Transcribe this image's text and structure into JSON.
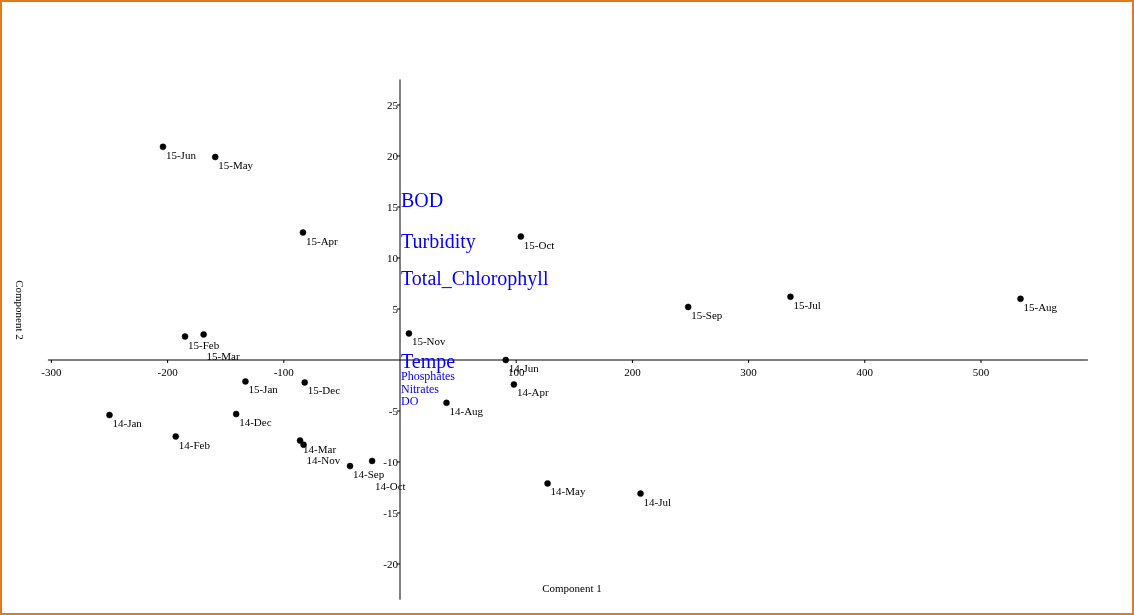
{
  "chart_data": {
    "type": "scatter",
    "xlabel": "Component 1",
    "ylabel": "Component 2",
    "xlim": [
      -303,
      592
    ],
    "ylim": [
      -23.5,
      27.5
    ],
    "xticks": [
      -300,
      -200,
      -100,
      100,
      200,
      300,
      400,
      500
    ],
    "yticks": [
      -20,
      -15,
      -10,
      -5,
      5,
      10,
      15,
      20,
      25
    ],
    "grid": false,
    "marker": "circle",
    "series": [
      {
        "color": "#000000",
        "x": [
          -204,
          -159,
          -83.5,
          -185,
          -169,
          7.7,
          104,
          248,
          336,
          534,
          91,
          98,
          40,
          -133,
          -82,
          -250,
          -141,
          -193,
          -86,
          -83,
          -43,
          -24,
          127,
          207
        ],
        "values": [
          20.9,
          19.9,
          12.5,
          2.3,
          2.5,
          2.6,
          12.1,
          5.2,
          6.2,
          6.0,
          0,
          -2.4,
          -4.2,
          -2.1,
          -2.2,
          -5.4,
          -5.3,
          -7.5,
          -7.9,
          -8.3,
          -10.4,
          -9.9,
          -12.1,
          -13.1
        ]
      }
    ],
    "annotations": [
      {
        "text": "15-Jun",
        "x": -204,
        "y": 20.9
      },
      {
        "text": "15-May",
        "x": -159,
        "y": 19.9
      },
      {
        "text": "15-Apr",
        "x": -83.5,
        "y": 12.5
      },
      {
        "text": "15-Feb",
        "x": -185,
        "y": 2.3
      },
      {
        "text": "15-Mar",
        "x": -169,
        "y": 2.5
      },
      {
        "text": "15-Nov",
        "x": 7.7,
        "y": 2.6
      },
      {
        "text": "15-Oct",
        "x": 104,
        "y": 12.1
      },
      {
        "text": "15-Sep",
        "x": 248,
        "y": 5.2
      },
      {
        "text": "15-Jul",
        "x": 336,
        "y": 6.2
      },
      {
        "text": "15-Aug",
        "x": 534,
        "y": 6.0
      },
      {
        "text": "14-Jun",
        "x": 91,
        "y": 0
      },
      {
        "text": "14-Apr",
        "x": 98,
        "y": -2.4
      },
      {
        "text": "14-Aug",
        "x": 40,
        "y": -4.2
      },
      {
        "text": "15-Jan",
        "x": -133,
        "y": -2.1
      },
      {
        "text": "15-Dec",
        "x": -82,
        "y": -2.2
      },
      {
        "text": "14-Jan",
        "x": -250,
        "y": -5.4
      },
      {
        "text": "14-Dec",
        "x": -141,
        "y": -5.3
      },
      {
        "text": "14-Feb",
        "x": -193,
        "y": -7.5
      },
      {
        "text": "14-Mar",
        "x": -86,
        "y": -7.9
      },
      {
        "text": "14-Nov",
        "x": -83,
        "y": -8.3
      },
      {
        "text": "14-Sep",
        "x": -43,
        "y": -10.4
      },
      {
        "text": "14-Oct",
        "x": -24,
        "y": -9.9
      },
      {
        "text": "14-May",
        "x": 127,
        "y": -12.1
      },
      {
        "text": "14-Jul",
        "x": 207,
        "y": -13.1
      },
      "BOD",
      "Turbidity",
      "Total_Chlorophyll",
      "Tempe",
      "Phosphates",
      "Nitrates",
      "DO"
    ]
  }
}
